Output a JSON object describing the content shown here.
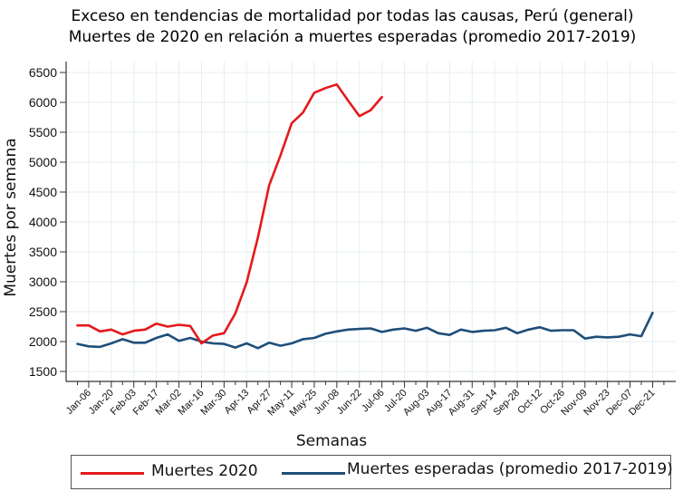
{
  "chart_data": {
    "type": "line",
    "title": "Exceso en tendencias de mortalidad por todas las causas, Perú (general)",
    "subtitle": "Muertes de 2020 en relación a muertes esperadas (promedio 2017-2019)",
    "xlabel": "Semanas",
    "ylabel": "Muertes por semana",
    "ylim": [
      1350,
      6650
    ],
    "yticks": [
      1500,
      2000,
      2500,
      3000,
      3500,
      4000,
      4500,
      5000,
      5500,
      6000,
      6500
    ],
    "x_tick_labels": [
      "Jan-06",
      "Jan-20",
      "Feb-03",
      "Feb-17",
      "Mar-02",
      "Mar-16",
      "Mar-30",
      "Apr-13",
      "Apr-27",
      "May-11",
      "May-25",
      "Jun-08",
      "Jun-22",
      "Jul-06",
      "Jul-20",
      "Aug-03",
      "Aug-17",
      "Aug-31",
      "Sep-14",
      "Sep-28",
      "Oct-12",
      "Oct-26",
      "Nov-09",
      "Nov-23",
      "Dec-07",
      "Dec-21"
    ],
    "x_tick_first_week_index": 1,
    "x_tick_step_weeks": 2,
    "n_weeks_axis": 53,
    "grid": true,
    "legend_position": "bottom",
    "series": [
      {
        "name": "Muertes 2020",
        "color": "#e41a1c",
        "values": [
          2270,
          2270,
          2170,
          2200,
          2120,
          2180,
          2200,
          2300,
          2250,
          2280,
          2260,
          1970,
          2100,
          2140,
          2470,
          2990,
          3740,
          4610,
          5110,
          5650,
          5830,
          6160,
          6240,
          6300,
          6030,
          5770,
          5870,
          6090
        ]
      },
      {
        "name": "Muertes esperadas (promedio 2017-2019)",
        "color": "#1f4e79",
        "values": [
          1960,
          1920,
          1910,
          1970,
          2040,
          1980,
          1980,
          2060,
          2120,
          2010,
          2060,
          2000,
          1970,
          1960,
          1900,
          1970,
          1890,
          1980,
          1930,
          1970,
          2040,
          2060,
          2130,
          2170,
          2200,
          2210,
          2220,
          2160,
          2200,
          2220,
          2180,
          2230,
          2140,
          2110,
          2200,
          2160,
          2180,
          2190,
          2230,
          2140,
          2200,
          2240,
          2180,
          2190,
          2190,
          2050,
          2080,
          2070,
          2080,
          2120,
          2090,
          2480
        ]
      }
    ]
  },
  "legend": {
    "items": [
      {
        "label": "Muertes 2020",
        "color": "#e41a1c"
      },
      {
        "label": "Muertes esperadas (promedio 2017-2019)",
        "color": "#1f4e79"
      }
    ]
  }
}
